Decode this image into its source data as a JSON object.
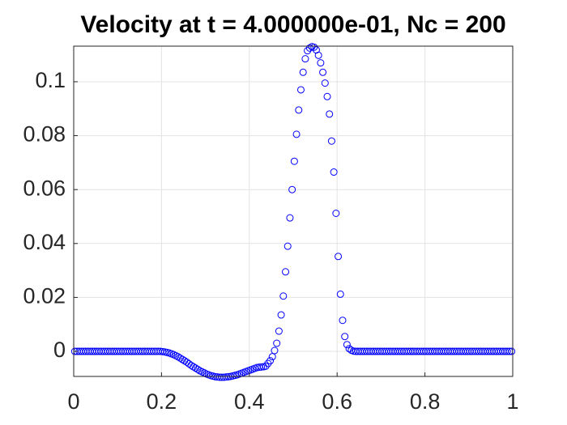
{
  "chart_data": {
    "type": "scatter",
    "title": "Velocity at t = 4.000000e-01, Nc = 200",
    "color": "#0000ff",
    "grid": true,
    "xlim": [
      0,
      1
    ],
    "xticks": [
      0,
      0.2,
      0.4,
      0.6,
      0.8,
      1
    ],
    "ylim": [
      -0.0093,
      0.1132
    ],
    "yticks": [
      0,
      0.02,
      0.04,
      0.06,
      0.08,
      0.1
    ],
    "x": [
      0.0025,
      0.0075,
      0.0125,
      0.0175,
      0.0225,
      0.0275,
      0.0325,
      0.0375,
      0.0425,
      0.0475,
      0.0525,
      0.0575,
      0.0625,
      0.0675,
      0.0725,
      0.0775,
      0.0825,
      0.0875,
      0.0925,
      0.0975,
      0.1025,
      0.1075,
      0.1125,
      0.1175,
      0.1225,
      0.1275,
      0.1325,
      0.1375,
      0.1425,
      0.1475,
      0.1525,
      0.1575,
      0.1625,
      0.1675,
      0.1725,
      0.1775,
      0.1825,
      0.1875,
      0.1925,
      0.1975,
      0.2025,
      0.2075,
      0.2125,
      0.2175,
      0.2225,
      0.2275,
      0.2325,
      0.2375,
      0.2425,
      0.2475,
      0.2525,
      0.2575,
      0.2625,
      0.2675,
      0.2725,
      0.2775,
      0.2825,
      0.2875,
      0.2925,
      0.2975,
      0.3025,
      0.3075,
      0.3125,
      0.3175,
      0.3225,
      0.3275,
      0.3325,
      0.3375,
      0.3425,
      0.3475,
      0.3525,
      0.3575,
      0.3625,
      0.3675,
      0.3725,
      0.3775,
      0.3825,
      0.3875,
      0.3925,
      0.3975,
      0.4025,
      0.4075,
      0.4125,
      0.4175,
      0.4225,
      0.4275,
      0.4325,
      0.4375,
      0.4425,
      0.4475,
      0.4525,
      0.4575,
      0.4625,
      0.4675,
      0.4725,
      0.4775,
      0.4825,
      0.4875,
      0.4925,
      0.4975,
      0.5025,
      0.5075,
      0.5125,
      0.5175,
      0.5225,
      0.5275,
      0.5325,
      0.5375,
      0.5425,
      0.5475,
      0.5525,
      0.5575,
      0.5625,
      0.5675,
      0.5725,
      0.5775,
      0.5825,
      0.5875,
      0.5925,
      0.5975,
      0.6025,
      0.6075,
      0.6125,
      0.6175,
      0.6225,
      0.6275,
      0.6325,
      0.6375,
      0.6425,
      0.6475,
      0.6525,
      0.6575,
      0.6625,
      0.6675,
      0.6725,
      0.6775,
      0.6825,
      0.6875,
      0.6925,
      0.6975,
      0.7025,
      0.7075,
      0.7125,
      0.7175,
      0.7225,
      0.7275,
      0.7325,
      0.7375,
      0.7425,
      0.7475,
      0.7525,
      0.7575,
      0.7625,
      0.7675,
      0.7725,
      0.7775,
      0.7825,
      0.7875,
      0.7925,
      0.7975,
      0.8025,
      0.8075,
      0.8125,
      0.8175,
      0.8225,
      0.8275,
      0.8325,
      0.8375,
      0.8425,
      0.8475,
      0.8525,
      0.8575,
      0.8625,
      0.8675,
      0.8725,
      0.8775,
      0.8825,
      0.8875,
      0.8925,
      0.8975,
      0.9025,
      0.9075,
      0.9125,
      0.9175,
      0.9225,
      0.9275,
      0.9325,
      0.9375,
      0.9425,
      0.9475,
      0.9525,
      0.9575,
      0.9625,
      0.9675,
      0.9725,
      0.9775,
      0.9825,
      0.9875,
      0.9925,
      0.9975
    ],
    "values": [
      0,
      0,
      0,
      0,
      0,
      0,
      0,
      0,
      0,
      0,
      0,
      0,
      0,
      0,
      0,
      0,
      0,
      0,
      0,
      0,
      0,
      0,
      0,
      0,
      0,
      0,
      0,
      0,
      0,
      0,
      0,
      0,
      0,
      0,
      0,
      0,
      0,
      0,
      0,
      0,
      -0.0001,
      -0.0002,
      -0.0004,
      -0.0006,
      -0.0009,
      -0.0012,
      -0.0016,
      -0.002,
      -0.0025,
      -0.003,
      -0.0035,
      -0.004,
      -0.0046,
      -0.0052,
      -0.0057,
      -0.0062,
      -0.0067,
      -0.0072,
      -0.0076,
      -0.008,
      -0.0084,
      -0.0087,
      -0.009,
      -0.0092,
      -0.0094,
      -0.0095,
      -0.0096,
      -0.0096,
      -0.0096,
      -0.0095,
      -0.0094,
      -0.0093,
      -0.0091,
      -0.0089,
      -0.0087,
      -0.0084,
      -0.0081,
      -0.0078,
      -0.0075,
      -0.0072,
      -0.0069,
      -0.0066,
      -0.0063,
      -0.006,
      -0.0059,
      -0.0058,
      -0.0057,
      -0.0055,
      -0.0045,
      -0.0035,
      -0.002,
      0.0003,
      0.003,
      0.0075,
      0.0135,
      0.0205,
      0.0295,
      0.039,
      0.0495,
      0.06,
      0.0705,
      0.0805,
      0.0895,
      0.097,
      0.1035,
      0.1085,
      0.1115,
      0.1125,
      0.113,
      0.1128,
      0.1118,
      0.1098,
      0.107,
      0.1035,
      0.0995,
      0.0945,
      0.088,
      0.078,
      0.0665,
      0.0512,
      0.0352,
      0.0212,
      0.0115,
      0.0055,
      0.0025,
      0.001,
      0.0004,
      0.0001,
      0,
      0,
      0,
      0,
      0,
      0,
      0,
      0,
      0,
      0,
      0,
      0,
      0,
      0,
      0,
      0,
      0,
      0,
      0,
      0,
      0,
      0,
      0,
      0,
      0,
      0,
      0,
      0,
      0,
      0,
      0,
      0,
      0,
      0,
      0,
      0,
      0,
      0,
      0,
      0,
      0,
      0,
      0,
      0,
      0,
      0,
      0,
      0,
      0,
      0,
      0,
      0,
      0,
      0,
      0,
      0,
      0,
      0,
      0,
      0,
      0,
      0,
      0,
      0,
      0,
      0,
      0,
      0,
      0,
      0,
      0,
      0
    ]
  }
}
